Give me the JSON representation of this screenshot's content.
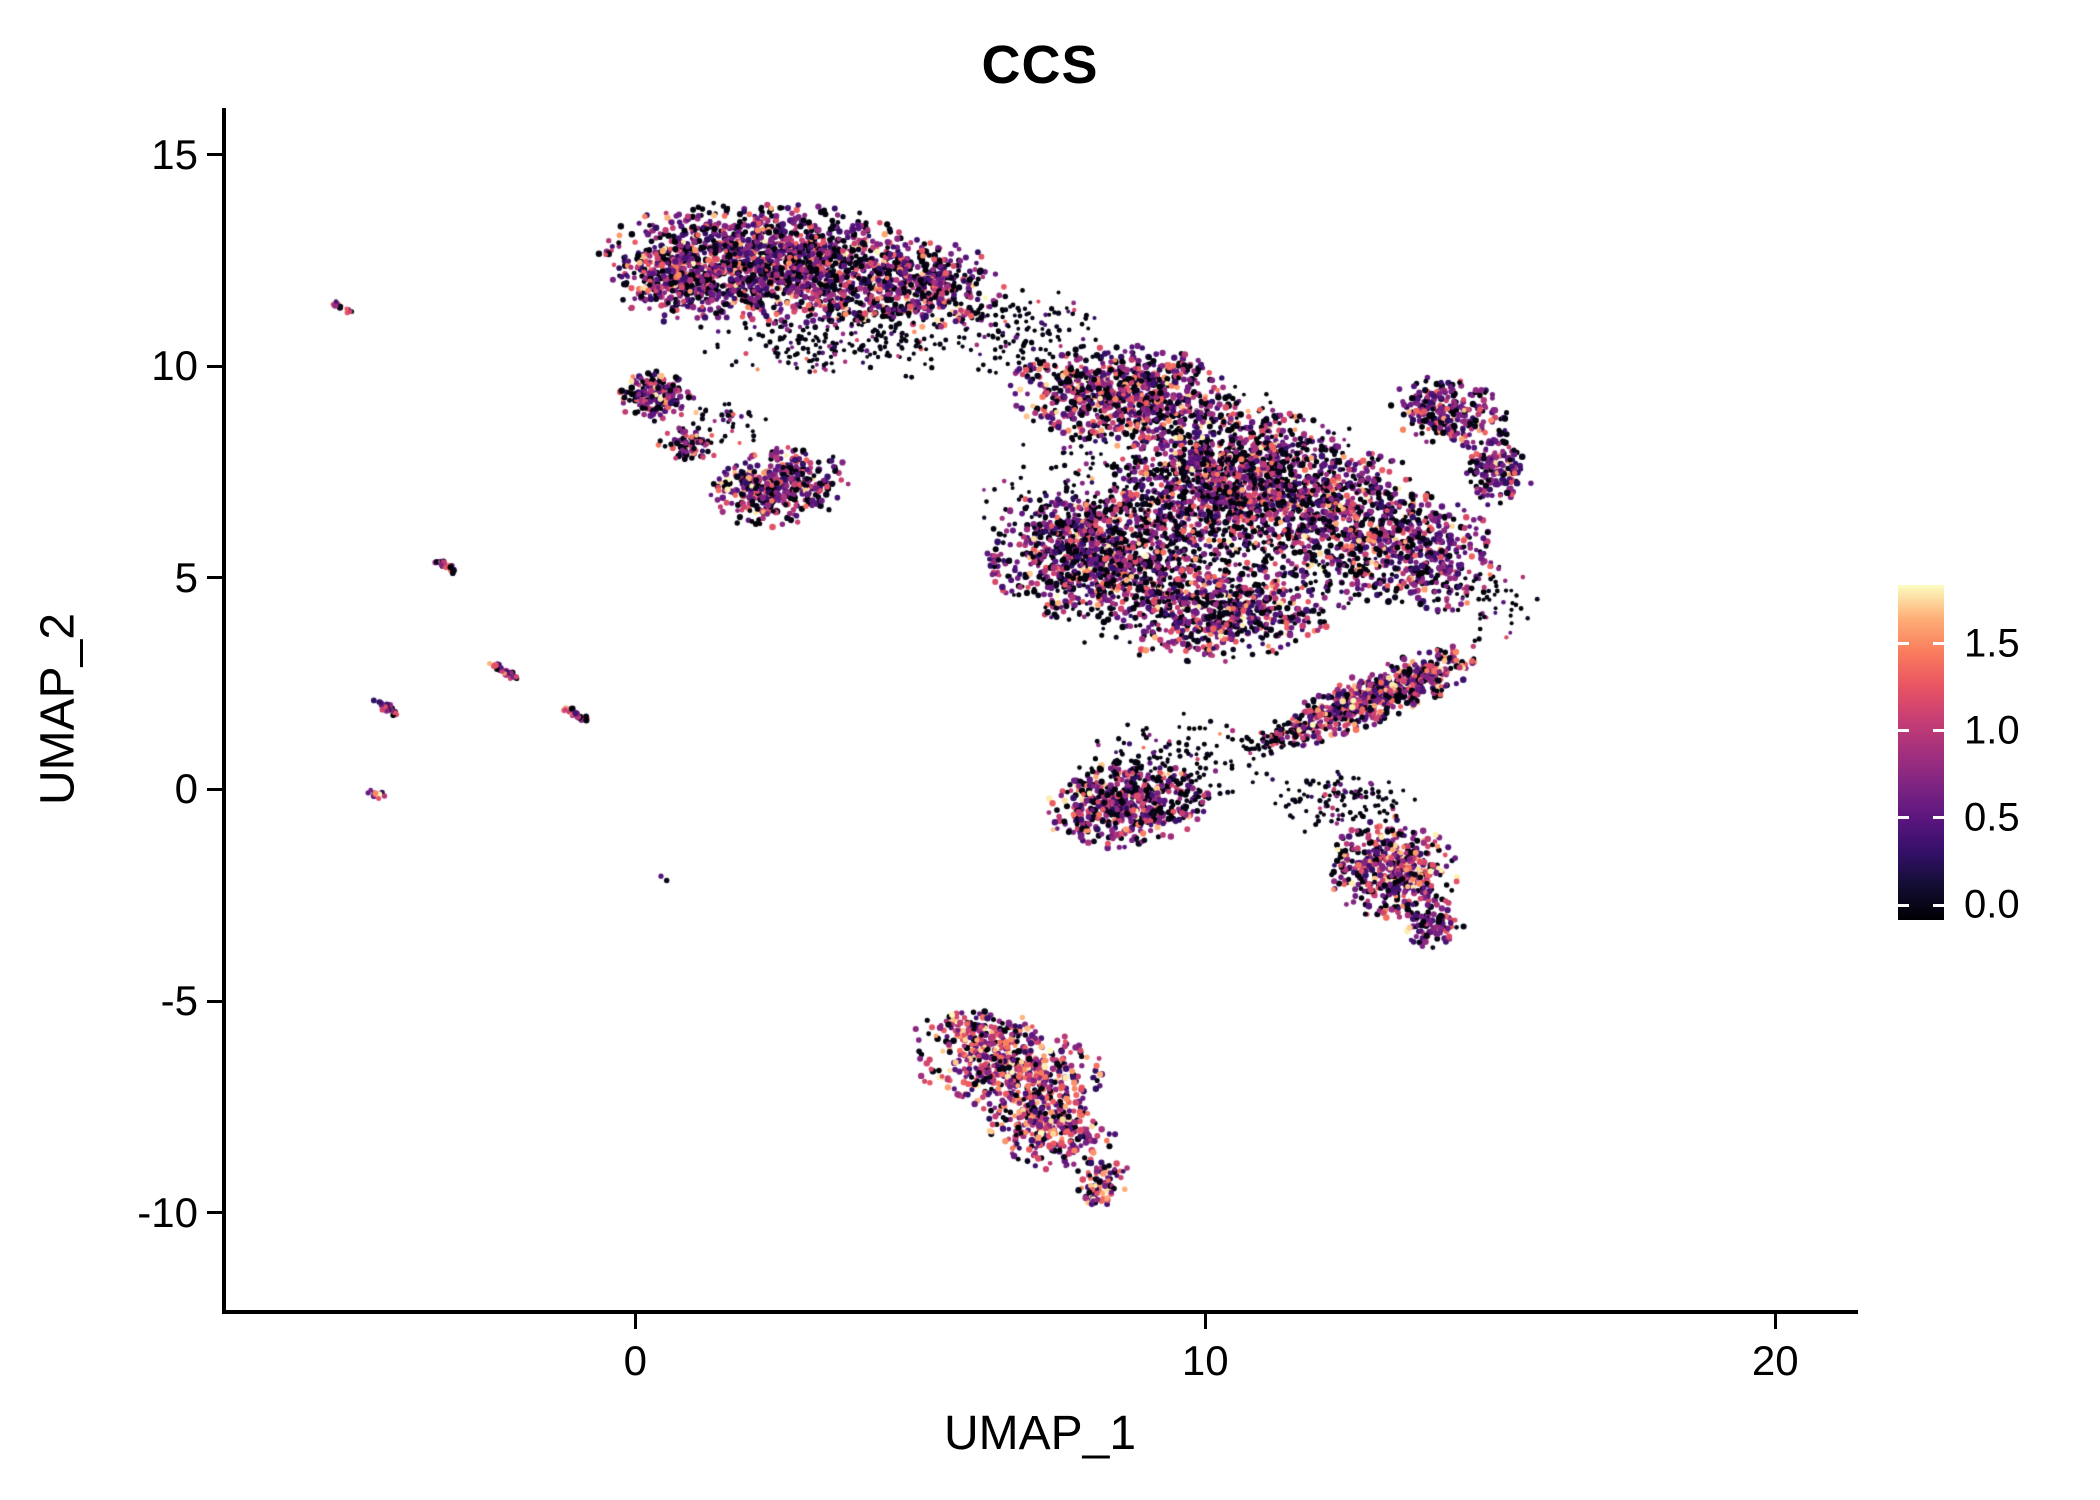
{
  "title": "CCS",
  "axes": {
    "x": {
      "label": "UMAP_1",
      "tick_labels": [
        "0",
        "10",
        "20"
      ],
      "tick_values": [
        0,
        10,
        20
      ]
    },
    "y": {
      "label": "UMAP_2",
      "tick_labels": [
        "15",
        "10",
        "5",
        "0",
        "-5",
        "-10"
      ],
      "tick_values": [
        15,
        10,
        5,
        0,
        -5,
        -10
      ]
    }
  },
  "colorbar": {
    "tick_labels": [
      "1.5",
      "1.0",
      "0.5",
      "0.0"
    ],
    "tick_values": [
      1.5,
      1.0,
      0.5,
      0.0
    ]
  },
  "chart_data": {
    "type": "scatter",
    "title": "CCS",
    "xlabel": "UMAP_1",
    "ylabel": "UMAP_2",
    "xlim": [
      -7.2,
      21.4
    ],
    "ylim": [
      -12.3,
      16.1
    ],
    "grid": false,
    "legend_position": "right",
    "point_radius_px": 2.8,
    "color_scale": {
      "name": "magma",
      "domain": [
        0,
        1.75
      ],
      "stops": [
        [
          0.0,
          "#000004"
        ],
        [
          0.1,
          "#120d31"
        ],
        [
          0.2,
          "#331068"
        ],
        [
          0.3,
          "#5a157e"
        ],
        [
          0.4,
          "#7e2482"
        ],
        [
          0.5,
          "#a3307e"
        ],
        [
          0.6,
          "#c73e73"
        ],
        [
          0.7,
          "#e95562"
        ],
        [
          0.8,
          "#f97c5d"
        ],
        [
          0.9,
          "#feae77"
        ],
        [
          1.0,
          "#fcfdbf"
        ]
      ]
    },
    "seed": 42,
    "value_profiles": {
      "dense_mix": [
        0.33,
        0.38,
        0.21,
        0.08
      ],
      "dark": [
        0.8,
        0.14,
        0.05,
        0.01
      ],
      "purple": [
        0.28,
        0.52,
        0.16,
        0.04
      ],
      "colorful": [
        0.2,
        0.33,
        0.29,
        0.18
      ],
      "mix2": [
        0.25,
        0.35,
        0.27,
        0.13
      ]
    },
    "clusters": [
      {
        "name": "top-main",
        "cx": 2.5,
        "cy": 12.4,
        "rx": 2.9,
        "ry": 1.35,
        "rot": -5,
        "n": 1700,
        "profile": "dense_mix"
      },
      {
        "name": "top-left-lobe",
        "cx": 0.7,
        "cy": 12.0,
        "rx": 1.0,
        "ry": 0.9,
        "rot": 0,
        "n": 220,
        "profile": "dense_mix"
      },
      {
        "name": "top-right-lobe",
        "cx": 5.2,
        "cy": 11.9,
        "rx": 1.3,
        "ry": 1.0,
        "rot": -15,
        "n": 300,
        "profile": "dense_mix"
      },
      {
        "name": "top-under-spray",
        "cx": 3.6,
        "cy": 10.6,
        "rx": 2.4,
        "ry": 0.9,
        "rot": 0,
        "n": 240,
        "profile": "dark"
      },
      {
        "name": "top-bridge",
        "cx": 6.9,
        "cy": 10.8,
        "rx": 1.3,
        "ry": 1.1,
        "rot": 0,
        "n": 130,
        "profile": "dark"
      },
      {
        "name": "left-small",
        "cx": 0.35,
        "cy": 9.3,
        "rx": 0.62,
        "ry": 0.55,
        "rot": 0,
        "n": 170,
        "profile": "dense_mix"
      },
      {
        "name": "left-small-tail",
        "cx": 0.95,
        "cy": 8.15,
        "rx": 0.5,
        "ry": 0.4,
        "rot": 0,
        "n": 70,
        "profile": "dense_mix"
      },
      {
        "name": "left-connector",
        "cx": 1.5,
        "cy": 8.6,
        "rx": 0.8,
        "ry": 0.5,
        "rot": 0,
        "n": 40,
        "profile": "dark"
      },
      {
        "name": "midleft-blob",
        "cx": 2.55,
        "cy": 7.15,
        "rx": 1.15,
        "ry": 0.85,
        "rot": 20,
        "n": 430,
        "profile": "dense_mix"
      },
      {
        "name": "main-top-lobe",
        "cx": 8.6,
        "cy": 9.3,
        "rx": 1.9,
        "ry": 1.1,
        "rot": -5,
        "n": 800,
        "profile": "dense_mix"
      },
      {
        "name": "main-core",
        "cx": 10.6,
        "cy": 7.2,
        "rx": 2.1,
        "ry": 1.7,
        "rot": 0,
        "n": 1300,
        "profile": "dense_mix"
      },
      {
        "name": "main-left",
        "cx": 8.0,
        "cy": 5.6,
        "rx": 1.7,
        "ry": 1.5,
        "rot": 0,
        "n": 900,
        "profile": "dense_mix"
      },
      {
        "name": "main-lower",
        "cx": 10.2,
        "cy": 4.3,
        "rx": 1.9,
        "ry": 1.2,
        "rot": 0,
        "n": 650,
        "profile": "dense_mix"
      },
      {
        "name": "main-right",
        "cx": 12.6,
        "cy": 6.2,
        "rx": 1.4,
        "ry": 1.8,
        "rot": 0,
        "n": 550,
        "profile": "dense_mix"
      },
      {
        "name": "main-far-right",
        "cx": 14.0,
        "cy": 5.6,
        "rx": 1.1,
        "ry": 1.3,
        "rot": 0,
        "n": 300,
        "profile": "purple"
      },
      {
        "name": "main-spray",
        "cx": 9.8,
        "cy": 6.3,
        "rx": 3.5,
        "ry": 3.0,
        "rot": 0,
        "n": 800,
        "profile": "dark"
      },
      {
        "name": "right-spray",
        "cx": 14.9,
        "cy": 4.5,
        "rx": 0.9,
        "ry": 1.0,
        "rot": 0,
        "n": 60,
        "profile": "dark"
      },
      {
        "name": "arm-upper",
        "cx": 14.3,
        "cy": 8.9,
        "rx": 1.0,
        "ry": 0.75,
        "rot": -20,
        "n": 260,
        "profile": "purple"
      },
      {
        "name": "arm-lower",
        "cx": 15.15,
        "cy": 7.6,
        "rx": 0.55,
        "ry": 0.95,
        "rot": 10,
        "n": 160,
        "profile": "purple"
      },
      {
        "name": "wing",
        "cx": 13.0,
        "cy": 2.2,
        "rx": 2.0,
        "ry": 0.55,
        "rot": 30,
        "n": 650,
        "profile": "mix2"
      },
      {
        "name": "wing-tip",
        "cx": 11.3,
        "cy": 1.2,
        "rx": 0.7,
        "ry": 0.4,
        "rot": 30,
        "n": 80,
        "profile": "dark"
      },
      {
        "name": "lower-mid",
        "cx": 8.6,
        "cy": -0.35,
        "rx": 1.35,
        "ry": 0.95,
        "rot": 10,
        "n": 550,
        "profile": "dense_mix"
      },
      {
        "name": "lower-mid-spray",
        "cx": 9.4,
        "cy": 0.7,
        "rx": 1.8,
        "ry": 1.0,
        "rot": 0,
        "n": 150,
        "profile": "dark"
      },
      {
        "name": "bottom-right-blob",
        "cx": 13.3,
        "cy": -1.9,
        "rx": 1.05,
        "ry": 1.15,
        "rot": 0,
        "n": 480,
        "profile": "mix2"
      },
      {
        "name": "bottom-right-tail",
        "cx": 14.0,
        "cy": -3.2,
        "rx": 0.5,
        "ry": 0.6,
        "rot": 0,
        "n": 80,
        "profile": "purple"
      },
      {
        "name": "mass-to-blob-bridge",
        "cx": 12.4,
        "cy": -0.3,
        "rx": 1.2,
        "ry": 0.8,
        "rot": 0,
        "n": 120,
        "profile": "dark"
      },
      {
        "name": "bottom-top-edge",
        "cx": 6.0,
        "cy": -5.7,
        "rx": 1.1,
        "ry": 0.45,
        "rot": 0,
        "n": 120,
        "profile": "colorful"
      },
      {
        "name": "bottom-main",
        "cx": 6.6,
        "cy": -6.6,
        "rx": 1.55,
        "ry": 1.0,
        "rot": -10,
        "n": 500,
        "profile": "colorful"
      },
      {
        "name": "bottom-lower",
        "cx": 7.3,
        "cy": -8.0,
        "rx": 1.1,
        "ry": 0.9,
        "rot": -35,
        "n": 300,
        "profile": "colorful"
      },
      {
        "name": "bottom-tail",
        "cx": 8.2,
        "cy": -9.3,
        "rx": 0.5,
        "ry": 0.55,
        "rot": -40,
        "n": 80,
        "profile": "colorful"
      }
    ],
    "streaks": [
      {
        "name": "streak-1",
        "cx": -5.15,
        "cy": 11.4,
        "len": 0.3,
        "angle": -38,
        "n": 12
      },
      {
        "name": "streak-2",
        "cx": -3.35,
        "cy": 5.3,
        "len": 0.5,
        "angle": -38,
        "n": 22
      },
      {
        "name": "streak-3",
        "cx": -2.3,
        "cy": 2.8,
        "len": 0.55,
        "angle": -38,
        "n": 26
      },
      {
        "name": "streak-4",
        "cx": -4.4,
        "cy": 1.95,
        "len": 0.5,
        "angle": -38,
        "n": 20
      },
      {
        "name": "streak-5",
        "cx": -1.1,
        "cy": 1.8,
        "len": 0.55,
        "angle": -38,
        "n": 24
      },
      {
        "name": "streak-6",
        "cx": -4.55,
        "cy": -0.1,
        "len": 0.3,
        "angle": -38,
        "n": 12
      }
    ],
    "singletons": [
      [
        0.45,
        -2.05,
        0.5
      ],
      [
        0.55,
        -2.15,
        0.1
      ]
    ]
  }
}
